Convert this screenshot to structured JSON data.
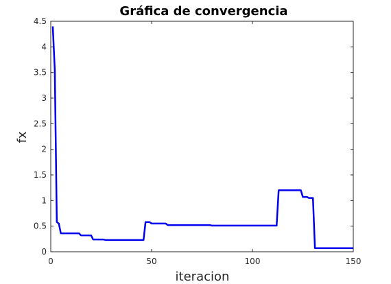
{
  "chart_data": {
    "type": "line",
    "title": "Gráfica de convergencia",
    "xlabel": "iteracion",
    "ylabel": "fx",
    "xlim": [
      0,
      150
    ],
    "ylim": [
      0,
      4.5
    ],
    "xticks": [
      0,
      50,
      100,
      150
    ],
    "xtick_labels": [
      "0",
      "50",
      "100",
      "150"
    ],
    "yticks": [
      0,
      0.5,
      1,
      1.5,
      2,
      2.5,
      3,
      3.5,
      4,
      4.5
    ],
    "ytick_labels": [
      "0",
      "0.5",
      "1",
      "1.5",
      "2",
      "2.5",
      "3",
      "3.5",
      "4",
      "4.5"
    ],
    "grid": false,
    "line_color": "#0000ee",
    "series": [
      {
        "x": [
          1,
          2,
          3,
          4,
          5,
          14,
          15,
          20,
          21,
          26,
          27,
          46,
          47,
          49,
          50,
          57,
          58,
          79,
          80,
          112,
          113,
          124,
          125,
          127,
          128,
          130,
          131,
          150
        ],
        "y": [
          4.4,
          3.55,
          0.58,
          0.55,
          0.36,
          0.36,
          0.32,
          0.32,
          0.24,
          0.24,
          0.23,
          0.23,
          0.58,
          0.58,
          0.55,
          0.55,
          0.52,
          0.52,
          0.51,
          0.51,
          1.2,
          1.2,
          1.07,
          1.07,
          1.05,
          1.05,
          0.07,
          0.07
        ]
      }
    ]
  }
}
